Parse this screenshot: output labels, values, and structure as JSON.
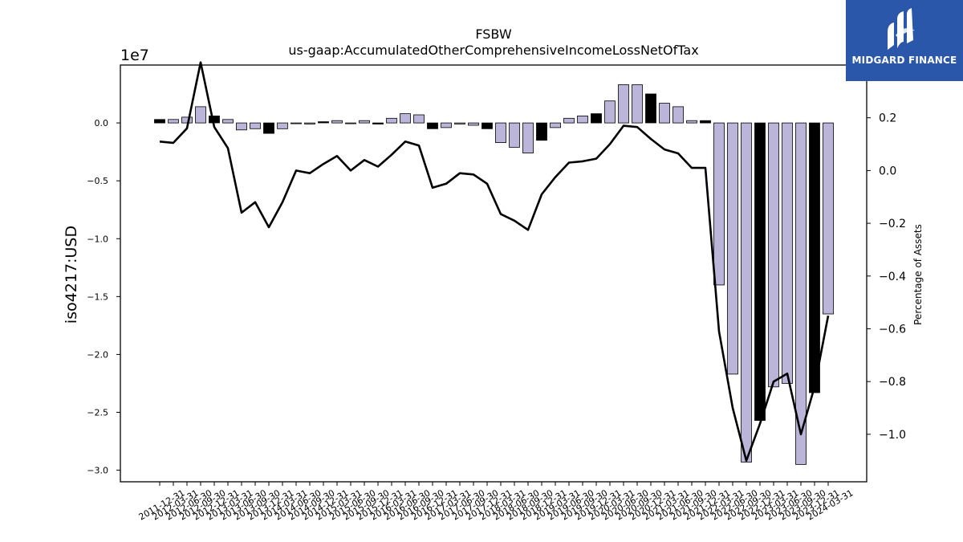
{
  "logo": {
    "text": "MIDGARD FINANCE",
    "icon": "midgard-logo-icon",
    "background": "#2b57aa"
  },
  "chart_data": {
    "type": "bar+line",
    "title": "FSBW",
    "subtitle": "us-gaap:AccumulatedOtherComprehensiveIncomeLossNetOfTax",
    "ylabel": "iso4217:USD",
    "y2label": "Percentage of Assets",
    "y_scale_label": "1e7",
    "ylim": [
      -31000000.0,
      5000000.0
    ],
    "y2lim": [
      -1.18,
      0.4
    ],
    "y_ticks": [
      0,
      -5000000,
      -10000000,
      -15000000,
      -20000000,
      -25000000,
      -30000000
    ],
    "y_tick_labels": [
      "0.0",
      "−0.5",
      "−1.0",
      "−1.5",
      "−2.0",
      "−2.5",
      "−3.0"
    ],
    "y2_ticks": [
      0.2,
      0.0,
      -0.2,
      -0.4,
      -0.6,
      -0.8,
      -1.0
    ],
    "y2_tick_labels": [
      "0.2",
      "0.0",
      "−0.2",
      "−0.4",
      "−0.6",
      "−0.8",
      "−1.0"
    ],
    "colors": {
      "bar": "#bab5d9",
      "bar_highlight": "#000000",
      "line": "#000000"
    },
    "x": [
      "2011-12-31",
      "2012-03-31",
      "2012-06-30",
      "2012-09-30",
      "2012-12-31",
      "2013-03-31",
      "2013-06-30",
      "2013-09-30",
      "2013-12-31",
      "2014-03-31",
      "2014-06-30",
      "2014-09-30",
      "2014-12-31",
      "2015-03-31",
      "2015-06-30",
      "2015-09-30",
      "2015-12-31",
      "2016-03-31",
      "2016-06-30",
      "2016-09-30",
      "2016-12-31",
      "2017-03-31",
      "2017-06-30",
      "2017-09-30",
      "2017-12-31",
      "2018-03-31",
      "2018-06-30",
      "2018-09-30",
      "2018-12-31",
      "2019-03-31",
      "2019-06-30",
      "2019-09-30",
      "2019-12-31",
      "2020-03-31",
      "2020-06-30",
      "2020-09-30",
      "2020-12-31",
      "2021-03-31",
      "2021-06-30",
      "2021-09-30",
      "2021-12-31",
      "2022-03-31",
      "2022-06-30",
      "2022-09-30",
      "2022-12-31",
      "2023-03-31",
      "2023-06-30",
      "2023-09-30",
      "2023-12-31",
      "2024-03-31"
    ],
    "x_tick_labels": [
      "2011-12-31",
      "2012-03-31",
      "2012-06-30",
      "2012-09-30",
      "2012-12-31",
      "2013-03-31",
      "2013-06-30",
      "2013-09-30",
      "2013-12-31",
      "2014-03-31",
      "2014-06-30",
      "2014-09-30",
      "2014-12-31",
      "2015-03-31",
      "2015-06-30",
      "2015-09-30",
      "2015-12-31",
      "2016-03-31",
      "2016-06-30",
      "2016-09-30",
      "2016-12-31",
      "2017-03-31",
      "2017-06-30",
      "2017-09-30",
      "2017-12-31",
      "2018-03-31",
      "2018-06-30",
      "2018-09-30",
      "2018-12-31",
      "2019-03-31",
      "2019-06-30",
      "2019-09-30",
      "2019-12-31",
      "2020-03-31",
      "2020-06-30",
      "2020-09-30",
      "2020-12-31",
      "2021-03-31",
      "2021-06-30",
      "2021-09-30",
      "2021-12-31",
      "2022-03-31",
      "2022-06-30",
      "2022-09-30",
      "2022-12-31",
      "2023-03-31",
      "2023-06-30",
      "2023-09-30",
      "2023-12-31",
      "2024-03-31"
    ],
    "series": [
      {
        "values": [
          300000,
          300000,
          500000,
          1400000,
          600000,
          300000,
          -600000,
          -500000,
          -900000,
          -500000,
          -50000,
          -100000,
          100000,
          200000,
          -50000,
          200000,
          -100000,
          400000,
          800000,
          700000,
          -500000,
          -400000,
          -100000,
          -200000,
          -500000,
          -1700000,
          -2100000,
          -2600000,
          -1500000,
          -400000,
          400000,
          600000,
          800000,
          1900000,
          3300000,
          3300000,
          2500000,
          1700000,
          1400000,
          200000,
          200000,
          -14000000,
          -21700000,
          -29300000,
          -25700000,
          -22800000,
          -22500000,
          -29500000,
          -23300000,
          -16500000
        ],
        "highlight": [
          true,
          false,
          false,
          false,
          true,
          false,
          false,
          false,
          true,
          false,
          false,
          false,
          true,
          false,
          false,
          false,
          true,
          false,
          false,
          false,
          true,
          false,
          false,
          false,
          true,
          false,
          false,
          false,
          true,
          false,
          false,
          false,
          true,
          false,
          false,
          false,
          true,
          false,
          false,
          false,
          true,
          false,
          false,
          false,
          true,
          false,
          false,
          false,
          true,
          false
        ]
      },
      {
        "axis": "right",
        "values": [
          0.11,
          0.105,
          0.16,
          0.41,
          0.165,
          0.085,
          -0.16,
          -0.12,
          -0.215,
          -0.12,
          0.0,
          -0.01,
          0.025,
          0.055,
          0.0,
          0.04,
          0.015,
          0.06,
          0.11,
          0.095,
          -0.065,
          -0.05,
          -0.01,
          -0.015,
          -0.05,
          -0.165,
          -0.19,
          -0.225,
          -0.09,
          -0.025,
          0.03,
          0.035,
          0.045,
          0.1,
          0.17,
          0.165,
          0.12,
          0.08,
          0.065,
          0.01,
          0.01,
          -0.61,
          -0.9,
          -1.1,
          -0.96,
          -0.8,
          -0.77,
          -1.0,
          -0.82,
          -0.55
        ]
      }
    ],
    "grid": false,
    "legend": "none"
  }
}
